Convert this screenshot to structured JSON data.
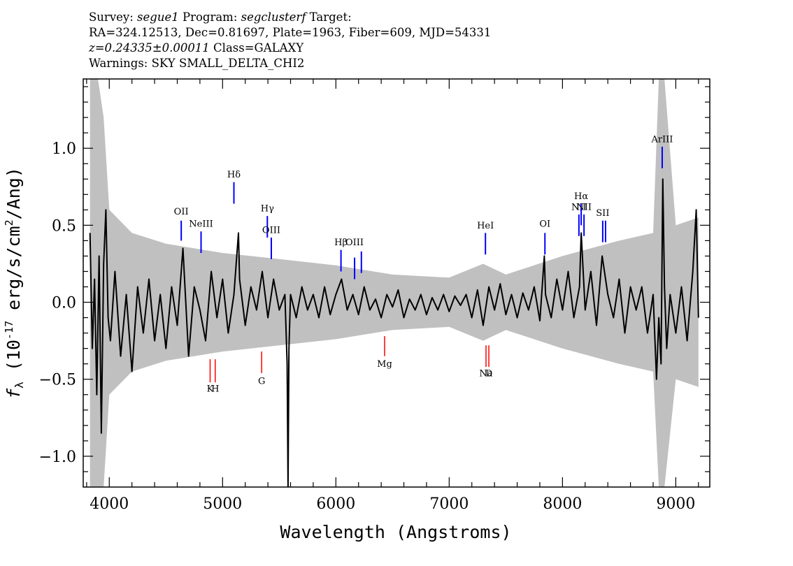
{
  "header": {
    "line1": {
      "survey_label": "Survey: ",
      "survey": "segue1",
      "program_label": " Program: ",
      "program": "segclusterf",
      "target_label": " Target:"
    },
    "line2": "RA=324.12513, Dec=0.81697, Plate=1963, Fiber=609, MJD=54331",
    "line3": {
      "z": "z=0.24335±0.00011",
      "class": " Class=GALAXY"
    },
    "line4": "Warnings: SKY SMALL_DELTA_CHI2"
  },
  "chart_data": {
    "type": "line",
    "xlabel": "Wavelength (Angstroms)",
    "ylabel_html": "f_λ (10^-17 erg/s/cm^2/Ang)",
    "xlim": [
      3770,
      9300
    ],
    "ylim": [
      -1.2,
      1.45
    ],
    "x_ticks": [
      4000,
      5000,
      6000,
      7000,
      8000,
      9000
    ],
    "x_tick_labels": [
      "4000",
      "5000",
      "6000",
      "7000",
      "8000",
      "9000"
    ],
    "y_ticks": [
      -1.0,
      -0.5,
      0.0,
      0.5,
      1.0
    ],
    "y_tick_labels": [
      "−1.0",
      "−0.5",
      "0.0",
      "0.5",
      "1.0"
    ],
    "x_minor_step": 200,
    "y_minor_step": 0.1,
    "series": [
      {
        "color": "#000000",
        "x": [
          3830,
          3850,
          3870,
          3890,
          3910,
          3930,
          3950,
          3970,
          3990,
          4010,
          4050,
          4100,
          4150,
          4200,
          4250,
          4300,
          4350,
          4400,
          4450,
          4500,
          4550,
          4600,
          4650,
          4700,
          4750,
          4800,
          4850,
          4900,
          4950,
          5000,
          5050,
          5100,
          5140,
          5150,
          5200,
          5250,
          5300,
          5350,
          5400,
          5450,
          5500,
          5550,
          5570,
          5578,
          5586,
          5600,
          5650,
          5700,
          5750,
          5800,
          5850,
          5900,
          5950,
          6000,
          6050,
          6100,
          6150,
          6200,
          6250,
          6300,
          6350,
          6400,
          6450,
          6500,
          6550,
          6600,
          6650,
          6700,
          6750,
          6800,
          6850,
          6900,
          6950,
          7000,
          7050,
          7100,
          7150,
          7200,
          7250,
          7300,
          7350,
          7400,
          7450,
          7500,
          7550,
          7600,
          7650,
          7700,
          7750,
          7800,
          7840,
          7850,
          7900,
          7950,
          8000,
          8050,
          8100,
          8150,
          8165,
          8200,
          8250,
          8300,
          8350,
          8400,
          8450,
          8500,
          8550,
          8600,
          8650,
          8700,
          8750,
          8800,
          8830,
          8850,
          8870,
          8885,
          8900,
          8920,
          8950,
          9000,
          9050,
          9100,
          9150,
          9180,
          9200
        ],
        "y": [
          0.45,
          -0.3,
          0.15,
          -0.6,
          0.3,
          -0.85,
          0.25,
          0.6,
          -0.1,
          -0.25,
          0.2,
          -0.35,
          0.05,
          -0.45,
          0.1,
          -0.2,
          0.15,
          -0.25,
          0.05,
          -0.3,
          0.1,
          -0.15,
          0.35,
          -0.35,
          0.1,
          -0.05,
          -0.25,
          0.2,
          -0.1,
          0.15,
          -0.2,
          0.05,
          0.45,
          0.15,
          -0.15,
          0.1,
          -0.05,
          0.2,
          -0.1,
          0.15,
          -0.05,
          0.05,
          -0.4,
          -1.2,
          -0.3,
          0.05,
          -0.1,
          0.1,
          -0.05,
          0.05,
          -0.1,
          0.1,
          -0.08,
          0.05,
          0.15,
          -0.05,
          0.05,
          -0.08,
          0.1,
          -0.05,
          0.02,
          -0.1,
          0.05,
          -0.03,
          0.08,
          -0.1,
          0.02,
          -0.05,
          0.05,
          -0.08,
          0.03,
          -0.05,
          0.05,
          -0.06,
          0.04,
          -0.02,
          0.05,
          -0.1,
          0.08,
          -0.15,
          0.1,
          -0.05,
          0.12,
          -0.08,
          0.05,
          -0.1,
          0.06,
          -0.05,
          0.1,
          -0.12,
          0.3,
          0.05,
          -0.1,
          0.15,
          -0.05,
          0.2,
          -0.1,
          0.1,
          0.45,
          -0.05,
          0.2,
          -0.15,
          0.3,
          0.05,
          -0.1,
          0.15,
          -0.2,
          0.1,
          -0.05,
          0.1,
          -0.2,
          0.05,
          -0.5,
          -0.1,
          -0.4,
          0.8,
          0.1,
          -0.3,
          0.05,
          -0.2,
          0.1,
          -0.25,
          0.2,
          0.6,
          -0.1
        ]
      }
    ],
    "error_band": {
      "color": "#c0c0c0",
      "x": [
        3830,
        3900,
        3950,
        4000,
        4200,
        4500,
        5000,
        5500,
        6000,
        6500,
        7000,
        7300,
        7500,
        8000,
        8500,
        8800,
        8850,
        8900,
        9000,
        9200
      ],
      "half_width": [
        2.0,
        1.5,
        1.2,
        0.6,
        0.45,
        0.38,
        0.32,
        0.28,
        0.24,
        0.18,
        0.16,
        0.25,
        0.18,
        0.3,
        0.4,
        0.45,
        1.5,
        1.5,
        0.5,
        0.55
      ]
    },
    "emission_lines": [
      {
        "label_html": "OII",
        "x": 4635,
        "y_bottom": 0.4,
        "y_top": 0.53,
        "label_y": 0.57
      },
      {
        "label_html": "NeIII",
        "x": 4810,
        "y_bottom": 0.32,
        "y_top": 0.46,
        "label_y": 0.49
      },
      {
        "label_html": "Hδ",
        "x": 5100,
        "y_bottom": 0.64,
        "y_top": 0.78,
        "label_y": 0.81
      },
      {
        "label_html": "Hγ",
        "x": 5395,
        "y_bottom": 0.42,
        "y_top": 0.56,
        "label_y": 0.59
      },
      {
        "label_html": "OIII",
        "x": 5430,
        "y_bottom": 0.28,
        "y_top": 0.42,
        "label_y": 0.45
      },
      {
        "label_html": "Hβ",
        "x": 6045,
        "y_bottom": 0.2,
        "y_top": 0.34,
        "label_y": 0.37
      },
      {
        "label_html": "OIII",
        "x": 6165,
        "y_bottom": 0.15,
        "y_top": 0.29,
        "label_y": 0.37
      },
      {
        "label_html": "",
        "x": 6225,
        "y_bottom": 0.19,
        "y_top": 0.33,
        "label_y": 0.37
      },
      {
        "label_html": "HeI",
        "x": 7320,
        "y_bottom": 0.31,
        "y_top": 0.45,
        "label_y": 0.48
      },
      {
        "label_html": "OI",
        "x": 7845,
        "y_bottom": 0.31,
        "y_top": 0.45,
        "label_y": 0.49
      },
      {
        "label_html": "NII",
        "x": 8145,
        "y_bottom": 0.43,
        "y_top": 0.57,
        "label_y": 0.6
      },
      {
        "label_html": "Hα",
        "x": 8165,
        "y_bottom": 0.5,
        "y_top": 0.64,
        "label_y": 0.67
      },
      {
        "label_html": "NII",
        "x": 8190,
        "y_bottom": 0.43,
        "y_top": 0.57,
        "label_y": 0.6
      },
      {
        "label_html": "SII",
        "x": 8355,
        "y_bottom": 0.39,
        "y_top": 0.53,
        "label_y": 0.56
      },
      {
        "label_html": "",
        "x": 8380,
        "y_bottom": 0.39,
        "y_top": 0.53,
        "label_y": 0.56
      },
      {
        "label_html": "ArIII",
        "x": 8880,
        "y_bottom": 0.87,
        "y_top": 1.01,
        "label_y": 1.04
      }
    ],
    "absorption_lines": [
      {
        "label_html": "K",
        "x": 4890,
        "y_top": -0.37,
        "y_bottom": -0.52,
        "label_y": -0.58
      },
      {
        "label_html": "H",
        "x": 4935,
        "y_top": -0.37,
        "y_bottom": -0.52,
        "label_y": -0.58
      },
      {
        "label_html": "G",
        "x": 5345,
        "y_top": -0.32,
        "y_bottom": -0.46,
        "label_y": -0.53
      },
      {
        "label_html": "Mg",
        "x": 6430,
        "y_top": -0.22,
        "y_bottom": -0.35,
        "label_y": -0.42
      },
      {
        "label_html": "Na",
        "x": 7325,
        "y_top": -0.28,
        "y_bottom": -0.42,
        "label_y": -0.48
      },
      {
        "label_html": "D",
        "x": 7350,
        "y_top": -0.28,
        "y_bottom": -0.42,
        "label_y": -0.48
      }
    ],
    "emission_color": "#0000ff",
    "absorption_color": "#ff0000"
  }
}
